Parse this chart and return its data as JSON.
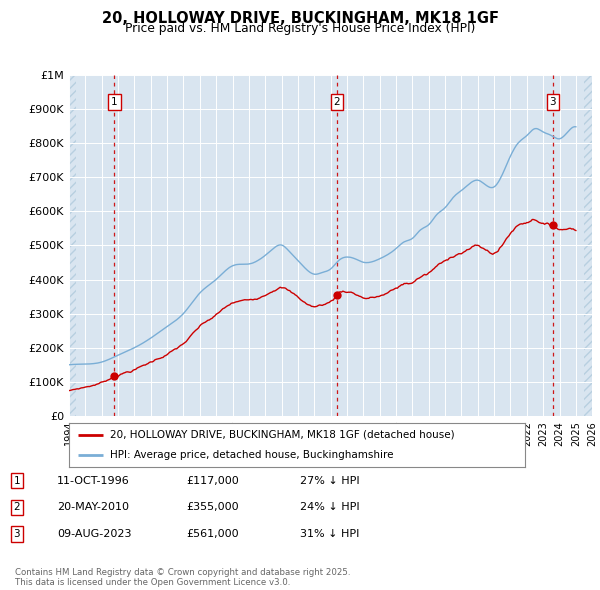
{
  "title": "20, HOLLOWAY DRIVE, BUCKINGHAM, MK18 1GF",
  "subtitle": "Price paid vs. HM Land Registry's House Price Index (HPI)",
  "ylim": [
    0,
    1000000
  ],
  "xlim_start": 1994.0,
  "xlim_end": 2026.0,
  "background_color": "#d9e5f0",
  "hatch_color": "#b8cfe0",
  "grid_color": "#ffffff",
  "red_line_color": "#cc0000",
  "blue_line_color": "#7aaed6",
  "sale_dates": [
    1996.78,
    2010.38,
    2023.6
  ],
  "sale_prices": [
    117000,
    355000,
    561000
  ],
  "sale_labels": [
    "1",
    "2",
    "3"
  ],
  "footer_text": "Contains HM Land Registry data © Crown copyright and database right 2025.\nThis data is licensed under the Open Government Licence v3.0.",
  "legend_entries": [
    "20, HOLLOWAY DRIVE, BUCKINGHAM, MK18 1GF (detached house)",
    "HPI: Average price, detached house, Buckinghamshire"
  ],
  "table_data": [
    [
      "1",
      "11-OCT-1996",
      "£117,000",
      "27% ↓ HPI"
    ],
    [
      "2",
      "20-MAY-2010",
      "£355,000",
      "24% ↓ HPI"
    ],
    [
      "3",
      "09-AUG-2023",
      "£561,000",
      "31% ↓ HPI"
    ]
  ],
  "ytick_labels": [
    "£0",
    "£100K",
    "£200K",
    "£300K",
    "£400K",
    "£500K",
    "£600K",
    "£700K",
    "£800K",
    "£900K",
    "£1M"
  ],
  "ytick_values": [
    0,
    100000,
    200000,
    300000,
    400000,
    500000,
    600000,
    700000,
    800000,
    900000,
    1000000
  ],
  "xtick_start": 1994,
  "xtick_end": 2026
}
